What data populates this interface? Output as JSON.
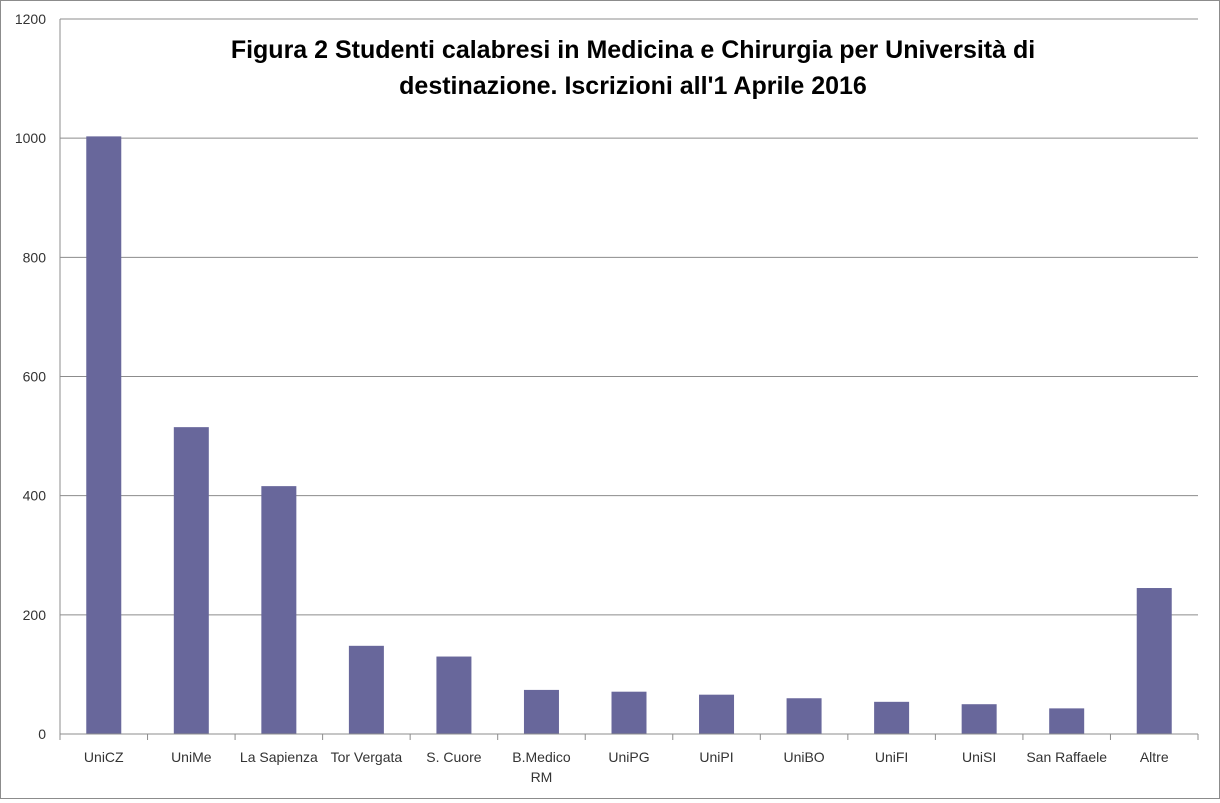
{
  "chart_data": {
    "type": "bar",
    "title": "Figura 2 Studenti calabresi in Medicina e Chirurgia per Università di destinazione. Iscrizioni all'1 Aprile 2016",
    "title_lines": [
      "Figura 2 Studenti calabresi in Medicina e Chirurgia per Università di",
      "destinazione. Iscrizioni all'1 Aprile 2016"
    ],
    "xlabel": "",
    "ylabel": "",
    "categories": [
      "UniCZ",
      "UniMe",
      "La Sapienza",
      "Tor Vergata",
      "S. Cuore",
      "B.Medico RM",
      "UniPG",
      "UniPI",
      "UniBO",
      "UniFI",
      "UniSI",
      "San Raffaele",
      "Altre"
    ],
    "category_lines": [
      [
        "UniCZ"
      ],
      [
        "UniMe"
      ],
      [
        "La Sapienza"
      ],
      [
        "Tor Vergata"
      ],
      [
        "S. Cuore"
      ],
      [
        "B.Medico",
        "RM"
      ],
      [
        "UniPG"
      ],
      [
        "UniPI"
      ],
      [
        "UniBO"
      ],
      [
        "UniFI"
      ],
      [
        "UniSI"
      ],
      [
        "San Raffaele"
      ],
      [
        "Altre"
      ]
    ],
    "values": [
      1003,
      515,
      416,
      148,
      130,
      74,
      71,
      66,
      60,
      54,
      50,
      43,
      245
    ],
    "ylim": [
      0,
      1200
    ],
    "yticks": [
      0,
      200,
      400,
      600,
      800,
      1000,
      1200
    ],
    "grid": true,
    "bar_color": "#68679b",
    "grid_color": "#8c8c8c"
  }
}
